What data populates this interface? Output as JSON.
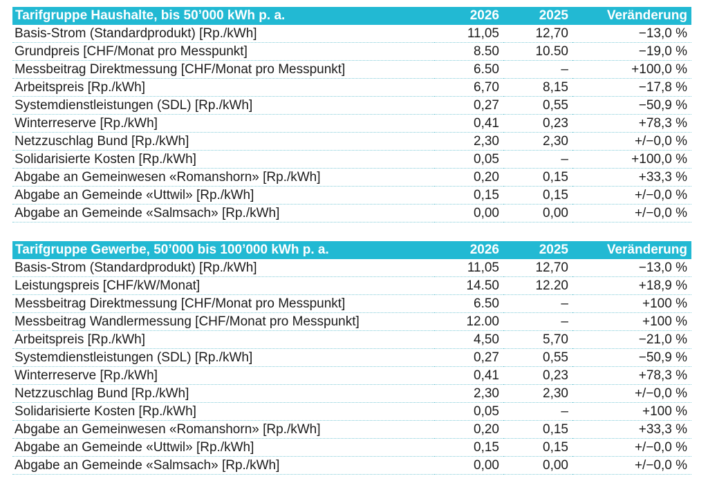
{
  "tables": [
    {
      "header": {
        "title": "Tarifgruppe Haushalte, bis 50’000 kWh p. a.",
        "year1": "2026",
        "year2": "2025",
        "change": "Veränderung"
      },
      "rows": [
        {
          "label": "Basis-Strom (Standardprodukt) [Rp./kWh]",
          "y1": "11,05",
          "y2": "12,70",
          "chg": "−13,0 %"
        },
        {
          "label": "Grundpreis [CHF/Monat pro Messpunkt]",
          "y1": "8.50",
          "y2": "10.50",
          "chg": "−19,0 %"
        },
        {
          "label": "Messbeitrag Direktmessung [CHF/Monat pro Messpunkt]",
          "y1": "6.50",
          "y2": "–",
          "chg": "+100,0 %"
        },
        {
          "label": "Arbeitspreis [Rp./kWh]",
          "y1": "6,70",
          "y2": "8,15",
          "chg": "−17,8 %"
        },
        {
          "label": "Systemdienstleistungen (SDL) [Rp./kWh]",
          "y1": "0,27",
          "y2": "0,55",
          "chg": "−50,9 %"
        },
        {
          "label": "Winterreserve [Rp./kWh]",
          "y1": "0,41",
          "y2": "0,23",
          "chg": "+78,3 %"
        },
        {
          "label": "Netzzuschlag Bund [Rp./kWh]",
          "y1": "2,30",
          "y2": "2,30",
          "chg": "+/−0,0 %"
        },
        {
          "label": "Solidarisierte Kosten [Rp./kWh]",
          "y1": "0,05",
          "y2": "–",
          "chg": "+100,0 %"
        },
        {
          "label": "Abgabe an Gemeinwesen «Romanshorn» [Rp./kWh]",
          "y1": "0,20",
          "y2": "0,15",
          "chg": "+33,3 %"
        },
        {
          "label": "Abgabe an Gemeinde «Uttwil» [Rp./kWh]",
          "y1": "0,15",
          "y2": "0,15",
          "chg": "+/−0,0 %"
        },
        {
          "label": "Abgabe an Gemeinde «Salmsach» [Rp./kWh]",
          "y1": "0,00",
          "y2": "0,00",
          "chg": "+/−0,0 %"
        }
      ]
    },
    {
      "header": {
        "title": "Tarifgruppe Gewerbe, 50’000 bis 100’000 kWh p. a.",
        "year1": "2026",
        "year2": "2025",
        "change": "Veränderung"
      },
      "rows": [
        {
          "label": "Basis-Strom (Standardprodukt) [Rp./kWh]",
          "y1": "11,05",
          "y2": "12,70",
          "chg": "−13,0 %"
        },
        {
          "label": "Leistungspreis [CHF/kW/Monat]",
          "y1": "14.50",
          "y2": "12.20",
          "chg": "+18,9 %"
        },
        {
          "label": "Messbeitrag Direktmessung [CHF/Monat pro Messpunkt]",
          "y1": "6.50",
          "y2": "–",
          "chg": "+100 %"
        },
        {
          "label": "Messbeitrag Wandlermessung [CHF/Monat pro Messpunkt]",
          "y1": "12.00",
          "y2": "–",
          "chg": "+100 %"
        },
        {
          "label": "Arbeitspreis [Rp./kWh]",
          "y1": "4,50",
          "y2": "5,70",
          "chg": "−21,0 %"
        },
        {
          "label": "Systemdienstleistungen (SDL) [Rp./kWh]",
          "y1": "0,27",
          "y2": "0,55",
          "chg": "−50,9 %"
        },
        {
          "label": "Winterreserve [Rp./kWh]",
          "y1": "0,41",
          "y2": "0,23",
          "chg": "+78,3 %"
        },
        {
          "label": "Netzzuschlag Bund [Rp./kWh]",
          "y1": "2,30",
          "y2": "2,30",
          "chg": "+/−0,0 %"
        },
        {
          "label": "Solidarisierte Kosten [Rp./kWh]",
          "y1": "0,05",
          "y2": "–",
          "chg": "+100 %"
        },
        {
          "label": "Abgabe an Gemeinwesen «Romanshorn» [Rp./kWh]",
          "y1": "0,20",
          "y2": "0,15",
          "chg": "+33,3 %"
        },
        {
          "label": "Abgabe an Gemeinde «Uttwil» [Rp./kWh]",
          "y1": "0,15",
          "y2": "0,15",
          "chg": "+/−0,0 %"
        },
        {
          "label": "Abgabe an Gemeinde «Salmsach» [Rp./kWh]",
          "y1": "0,00",
          "y2": "0,00",
          "chg": "+/−0,0 %"
        }
      ]
    }
  ],
  "colors": {
    "header_bg": "#22b9d3",
    "header_text": "#ffffff",
    "row_divider": "#7fcbd8"
  }
}
